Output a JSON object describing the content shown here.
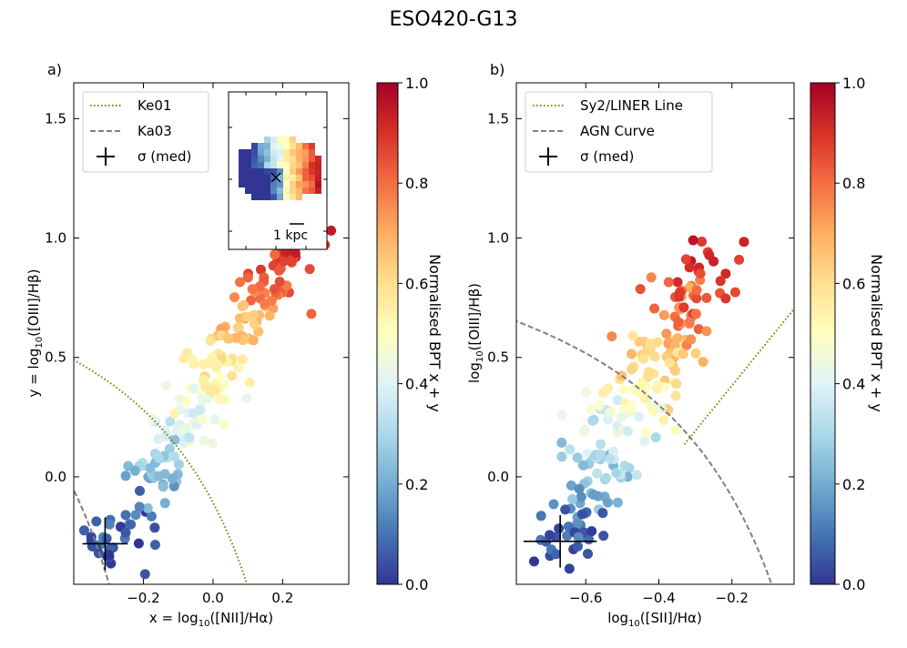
{
  "figure_title": "ESO420-G13",
  "chart_data": [
    {
      "panel_label": "a)",
      "type": "scatter",
      "xlabel_prefix": "x = log",
      "xlabel_sub": "10",
      "xlabel_suffix": "([NII]/Hα)",
      "ylabel_prefix": "y = log",
      "ylabel_sub": "10",
      "ylabel_suffix": "([OIII]/Hβ)",
      "xlim": [
        -0.4,
        0.39
      ],
      "ylim": [
        -0.45,
        1.65
      ],
      "xticks": [
        -0.2,
        0.0,
        0.2
      ],
      "xtick_labels": [
        "−0.2",
        "0.0",
        "0.2"
      ],
      "yticks": [
        0.0,
        0.5,
        1.0,
        1.5
      ],
      "ytick_labels": [
        "0.0",
        "0.5",
        "1.0",
        "1.5"
      ],
      "legend": [
        "Ke01",
        "Ka03",
        "σ (med)"
      ],
      "legend_position": "top-left",
      "error_cross": {
        "x": -0.31,
        "y": -0.28,
        "xerr": 0.065,
        "yerr": 0.11
      },
      "inset": {
        "scale_label": "1 kpc"
      },
      "colorbar": {
        "label": "Normalised BPT x + y",
        "range": [
          0,
          1
        ],
        "ticks": [
          "0.0",
          "0.2",
          "0.4",
          "0.6",
          "0.8",
          "1.0"
        ]
      }
    },
    {
      "panel_label": "b)",
      "type": "scatter",
      "xlabel_prefix": "log",
      "xlabel_sub": "10",
      "xlabel_suffix": "([SII]/Hα)",
      "ylabel_prefix": "log",
      "ylabel_sub": "10",
      "ylabel_suffix": "([OIII]/Hβ)",
      "xlim": [
        -0.79,
        -0.03
      ],
      "ylim": [
        -0.45,
        1.65
      ],
      "xticks": [
        -0.6,
        -0.4,
        -0.2
      ],
      "xtick_labels": [
        "−0.6",
        "−0.4",
        "−0.2"
      ],
      "yticks": [
        0.0,
        0.5,
        1.0,
        1.5
      ],
      "ytick_labels": [
        "0.0",
        "0.5",
        "1.0",
        "1.5"
      ],
      "legend": [
        "Sy2/LINER Line",
        "AGN Curve",
        "σ (med)"
      ],
      "legend_position": "top-left",
      "error_cross": {
        "x": -0.67,
        "y": -0.27,
        "xerr": 0.1,
        "yerr": 0.11
      },
      "colorbar": {
        "label": "Normalised BPT x + y",
        "range": [
          0,
          1
        ],
        "ticks": [
          "0.0",
          "0.2",
          "0.4",
          "0.6",
          "0.8",
          "1.0"
        ]
      }
    }
  ]
}
